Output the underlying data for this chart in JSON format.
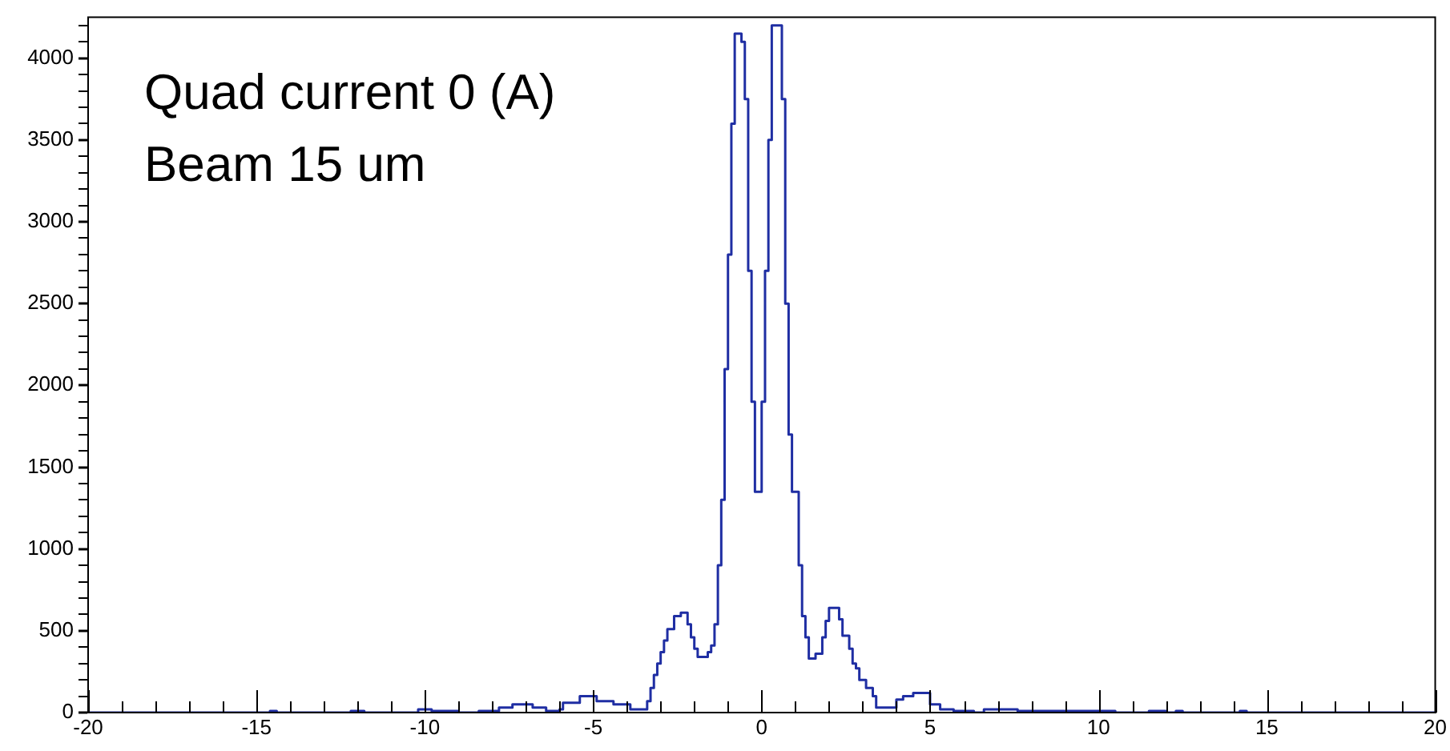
{
  "chart_data": {
    "type": "histogram",
    "color": "#1f2ea3",
    "annotations": [
      "Quad current 0 (A)",
      "Beam 15 um"
    ],
    "bins": [
      -20,
      -14.6,
      -14.4,
      -12.2,
      -11.8,
      -10.2,
      -9.8,
      -9,
      -8.4,
      -7.8,
      -7.4,
      -6.8,
      -6.4,
      -6,
      -5.9,
      -5.4,
      -4.9,
      -4.4,
      -3.9,
      -3.4,
      -3.3,
      -3.2,
      -3.1,
      -3.0,
      -2.9,
      -2.8,
      -2.7,
      -2.6,
      -2.5,
      -2.4,
      -2.3,
      -2.2,
      -2.1,
      -2.0,
      -1.9,
      -1.8,
      -1.7,
      -1.6,
      -1.5,
      -1.4,
      -1.3,
      -1.2,
      -1.1,
      -1.0,
      -0.9,
      -0.8,
      -0.7,
      -0.6,
      -0.5,
      -0.4,
      -0.3,
      -0.2,
      -0.1,
      0,
      0.1,
      0.2,
      0.3,
      0.4,
      0.5,
      0.6,
      0.7,
      0.8,
      0.9,
      1.0,
      1.1,
      1.2,
      1.3,
      1.4,
      1.5,
      1.6,
      1.7,
      1.8,
      1.9,
      2.0,
      2.1,
      2.2,
      2.3,
      2.4,
      2.5,
      2.6,
      2.7,
      2.8,
      2.9,
      3.0,
      3.1,
      3.2,
      3.3,
      3.4,
      4.0,
      4.2,
      4.5,
      5.0,
      5.3,
      5.7,
      6.3,
      6.6,
      7.6,
      8.0,
      10.5,
      11.5,
      12.0,
      12.3,
      12.5,
      14.2,
      14.4,
      20
    ],
    "values": [
      0,
      10,
      0,
      10,
      0,
      20,
      10,
      0,
      10,
      30,
      50,
      30,
      10,
      20,
      60,
      100,
      70,
      50,
      20,
      70,
      150,
      230,
      300,
      370,
      440,
      510,
      510,
      590,
      590,
      610,
      610,
      540,
      460,
      390,
      340,
      340,
      340,
      370,
      410,
      540,
      900,
      1300,
      2100,
      2800,
      3600,
      4150,
      4150,
      4100,
      3750,
      2700,
      1900,
      1350,
      1350,
      1900,
      2700,
      3500,
      4200,
      4200,
      4200,
      3750,
      2500,
      1700,
      1350,
      1350,
      900,
      590,
      460,
      330,
      330,
      360,
      360,
      460,
      560,
      640,
      640,
      640,
      570,
      470,
      470,
      390,
      300,
      270,
      200,
      200,
      150,
      150,
      100,
      30,
      80,
      100,
      120,
      50,
      20,
      10,
      0,
      20,
      10,
      10,
      0,
      10,
      0,
      10,
      0,
      10,
      0
    ],
    "xlim": [
      -20,
      20
    ],
    "xticks": [
      -20,
      {
        "value": -19,
        "label": null
      },
      {
        "value": -18,
        "label": null
      },
      {
        "value": -17,
        "label": null
      },
      {
        "value": -16,
        "label": null
      },
      -15,
      {
        "value": -14,
        "label": null
      },
      {
        "value": -13,
        "label": null
      },
      {
        "value": -12,
        "label": null
      },
      {
        "value": -11,
        "label": null
      },
      -10,
      {
        "value": -9,
        "label": null
      },
      {
        "value": -8,
        "label": null
      },
      {
        "value": -7,
        "label": null
      },
      {
        "value": -6,
        "label": null
      },
      -5,
      {
        "value": -4,
        "label": null
      },
      {
        "value": -3,
        "label": null
      },
      {
        "value": -2,
        "label": null
      },
      {
        "value": -1,
        "label": null
      },
      0,
      {
        "value": 1,
        "label": null
      },
      {
        "value": 2,
        "label": null
      },
      {
        "value": 3,
        "label": null
      },
      {
        "value": 4,
        "label": null
      },
      5,
      {
        "value": 6,
        "label": null
      },
      {
        "value": 7,
        "label": null
      },
      {
        "value": 8,
        "label": null
      },
      {
        "value": 9,
        "label": null
      },
      10,
      {
        "value": 11,
        "label": null
      },
      {
        "value": 12,
        "label": null
      },
      {
        "value": 13,
        "label": null
      },
      {
        "value": 14,
        "label": null
      },
      15,
      {
        "value": 16,
        "label": null
      },
      {
        "value": 17,
        "label": null
      },
      {
        "value": 18,
        "label": null
      },
      {
        "value": 19,
        "label": null
      },
      20
    ],
    "ylim": [
      0,
      4250
    ],
    "yticks": [
      0,
      {
        "value": 100,
        "label": null
      },
      {
        "value": 200,
        "label": null
      },
      {
        "value": 300,
        "label": null
      },
      {
        "value": 400,
        "label": null
      },
      500,
      {
        "value": 600,
        "label": null
      },
      {
        "value": 700,
        "label": null
      },
      {
        "value": 800,
        "label": null
      },
      {
        "value": 900,
        "label": null
      },
      1000,
      {
        "value": 1100,
        "label": null
      },
      {
        "value": 1200,
        "label": null
      },
      {
        "value": 1300,
        "label": null
      },
      {
        "value": 1400,
        "label": null
      },
      1500,
      {
        "value": 1600,
        "label": null
      },
      {
        "value": 1700,
        "label": null
      },
      {
        "value": 1800,
        "label": null
      },
      {
        "value": 1900,
        "label": null
      },
      2000,
      {
        "value": 2100,
        "label": null
      },
      {
        "value": 2200,
        "label": null
      },
      {
        "value": 2300,
        "label": null
      },
      {
        "value": 2400,
        "label": null
      },
      2500,
      {
        "value": 2600,
        "label": null
      },
      {
        "value": 2700,
        "label": null
      },
      {
        "value": 2800,
        "label": null
      },
      {
        "value": 2900,
        "label": null
      },
      3000,
      {
        "value": 3100,
        "label": null
      },
      {
        "value": 3200,
        "label": null
      },
      {
        "value": 3300,
        "label": null
      },
      {
        "value": 3400,
        "label": null
      },
      3500,
      {
        "value": 3600,
        "label": null
      },
      {
        "value": 3700,
        "label": null
      },
      {
        "value": 3800,
        "label": null
      },
      {
        "value": 3900,
        "label": null
      },
      4000,
      {
        "value": 4100,
        "label": null
      },
      {
        "value": 4200,
        "label": null
      }
    ]
  }
}
